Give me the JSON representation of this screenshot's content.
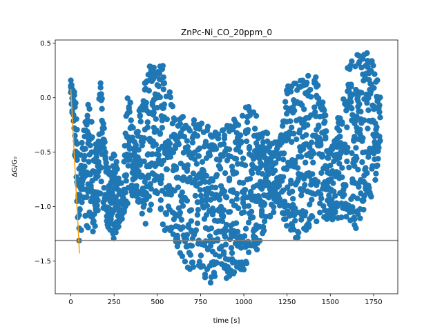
{
  "chart_data": {
    "type": "scatter",
    "title": "ZnPc-Ni_CO_20ppm_0",
    "xlabel": "time [s]",
    "ylabel": "ΔG/G₀",
    "xlim": [
      -90,
      1890
    ],
    "ylim": [
      -1.8,
      0.53
    ],
    "xticks": [
      0,
      250,
      500,
      750,
      1000,
      1250,
      1500,
      1750
    ],
    "xtick_labels": [
      "0",
      "250",
      "500",
      "750",
      "1000",
      "1250",
      "1500",
      "1750"
    ],
    "yticks": [
      -1.5,
      -1.0,
      -0.5,
      0.0,
      0.5
    ],
    "ytick_labels": [
      "−1.5",
      "−1.0",
      "−0.5",
      "0.0",
      "0.5"
    ],
    "grid": false,
    "colors": {
      "scatter": "#1f77b4",
      "fit": "#ff9f00",
      "hline": "#808080"
    },
    "scatter_envelope": [
      {
        "x": 0,
        "y_low": 0.0,
        "y_high": 0.16
      },
      {
        "x": 20,
        "y_low": -0.5,
        "y_high": 0.1
      },
      {
        "x": 45,
        "y_low": -1.36,
        "y_high": -0.3
      },
      {
        "x": 70,
        "y_low": -1.15,
        "y_high": -0.4
      },
      {
        "x": 100,
        "y_low": -1.2,
        "y_high": 0.12
      },
      {
        "x": 140,
        "y_low": -1.25,
        "y_high": -0.5
      },
      {
        "x": 170,
        "y_low": -0.9,
        "y_high": 0.2
      },
      {
        "x": 210,
        "y_low": -1.2,
        "y_high": -0.6
      },
      {
        "x": 250,
        "y_low": -1.3,
        "y_high": -0.5
      },
      {
        "x": 300,
        "y_low": -1.1,
        "y_high": -0.8
      },
      {
        "x": 330,
        "y_low": -1.0,
        "y_high": 0.2
      },
      {
        "x": 370,
        "y_low": -0.85,
        "y_high": -0.4
      },
      {
        "x": 430,
        "y_low": -1.2,
        "y_high": 0.3
      },
      {
        "x": 480,
        "y_low": -0.9,
        "y_high": 0.3
      },
      {
        "x": 530,
        "y_low": -1.2,
        "y_high": 0.35
      },
      {
        "x": 600,
        "y_low": -1.3,
        "y_high": 0.0
      },
      {
        "x": 650,
        "y_low": -1.55,
        "y_high": -0.15
      },
      {
        "x": 700,
        "y_low": -1.62,
        "y_high": -0.2
      },
      {
        "x": 750,
        "y_low": -1.6,
        "y_high": -0.2
      },
      {
        "x": 800,
        "y_low": -1.72,
        "y_high": -0.18
      },
      {
        "x": 850,
        "y_low": -1.6,
        "y_high": -0.3
      },
      {
        "x": 900,
        "y_low": -1.7,
        "y_high": -0.2
      },
      {
        "x": 950,
        "y_low": -1.6,
        "y_high": -0.15
      },
      {
        "x": 1000,
        "y_low": -1.6,
        "y_high": -0.05
      },
      {
        "x": 1050,
        "y_low": -1.5,
        "y_high": -0.1
      },
      {
        "x": 1100,
        "y_low": -1.3,
        "y_high": -0.25
      },
      {
        "x": 1150,
        "y_low": -1.1,
        "y_high": -0.35
      },
      {
        "x": 1200,
        "y_low": -1.0,
        "y_high": -0.4
      },
      {
        "x": 1250,
        "y_low": -1.2,
        "y_high": 0.1
      },
      {
        "x": 1300,
        "y_low": -1.3,
        "y_high": 0.2
      },
      {
        "x": 1350,
        "y_low": -1.25,
        "y_high": 0.2
      },
      {
        "x": 1400,
        "y_low": -1.2,
        "y_high": 0.25
      },
      {
        "x": 1450,
        "y_low": -1.1,
        "y_high": 0.15
      },
      {
        "x": 1500,
        "y_low": -1.15,
        "y_high": -0.5
      },
      {
        "x": 1550,
        "y_low": -1.1,
        "y_high": -0.1
      },
      {
        "x": 1600,
        "y_low": -1.15,
        "y_high": 0.3
      },
      {
        "x": 1650,
        "y_low": -1.2,
        "y_high": 0.4
      },
      {
        "x": 1700,
        "y_low": -1.0,
        "y_high": 0.42
      },
      {
        "x": 1750,
        "y_low": -0.9,
        "y_high": 0.38
      },
      {
        "x": 1790,
        "y_low": -0.45,
        "y_high": 0.0
      }
    ],
    "fit_line": {
      "x": [
        0,
        50
      ],
      "y": [
        0.08,
        -1.43
      ]
    },
    "hline": {
      "y": -1.31
    }
  }
}
